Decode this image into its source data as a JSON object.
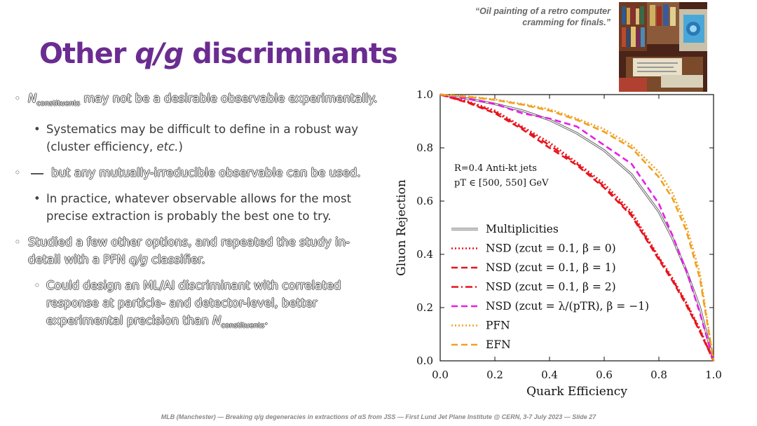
{
  "quote": {
    "line1": "“Oil painting of a retro computer",
    "line2": "cramming for finals.”"
  },
  "title": {
    "part1": "Other ",
    "italic": "q/g",
    "part2": " discriminants"
  },
  "bullets": {
    "b1_sym": "N",
    "b1_sub": "constituents",
    "b1_rest": " may not be a desirable observable experimentally.",
    "b1a": "Systematics may be difficult to define in a robust way (cluster efficiency, ",
    "b1a_it": "etc.",
    "b1a_end": ")",
    "b2": " but any mutually-irreducible observable can be used.",
    "b2a": "In practice, whatever observable allows for the most precise extraction is probably the best one to try.",
    "b3_pre": "Studied a few other options, and repeated the study in-detail with a PFN ",
    "b3_it": "q/g",
    "b3_post": " classifier.",
    "b3a_pre": "Could design an ML/AI discriminant with correlated response at particle- and detector-level, better experimental precision than ",
    "b3a_sym": "N",
    "b3a_sub": "constituents",
    "b3a_end": "."
  },
  "footer": "MLB (Manchester) — Breaking q/g degeneracies in extractions of αS from JSS — First Lund Jet Plane Institute @ CERN, 3-7 July 2023 — Slide 27",
  "chart_data": {
    "type": "line",
    "xlabel": "Quark Efficiency",
    "ylabel": "Gluon Rejection",
    "xlim": [
      0,
      1
    ],
    "ylim": [
      0,
      1
    ],
    "xticks": [
      "0.0",
      "0.2",
      "0.4",
      "0.6",
      "0.8",
      "1.0"
    ],
    "yticks": [
      "0.0",
      "0.2",
      "0.4",
      "0.6",
      "0.8",
      "1.0"
    ],
    "annotation_line1": "R=0.4 Anti-kt jets",
    "annotation_line2": "pT ∈ [500, 550] GeV",
    "legend_position": "lower-left",
    "series": [
      {
        "name": "Multiplicities",
        "color": "#555555",
        "style": "double",
        "x": [
          0,
          0.1,
          0.2,
          0.3,
          0.4,
          0.5,
          0.6,
          0.7,
          0.8,
          0.85,
          0.9,
          0.95,
          1.0
        ],
        "y": [
          1.0,
          0.985,
          0.965,
          0.94,
          0.905,
          0.855,
          0.79,
          0.7,
          0.56,
          0.46,
          0.34,
          0.2,
          0.0
        ]
      },
      {
        "name": "NSD (zcut = 0.1, β = 0)",
        "color": "#e8141c",
        "style": "dotted",
        "x": [
          0,
          0.1,
          0.2,
          0.3,
          0.4,
          0.5,
          0.6,
          0.7,
          0.8,
          0.85,
          0.9,
          0.95,
          1.0
        ],
        "y": [
          1.0,
          0.975,
          0.94,
          0.88,
          0.82,
          0.745,
          0.665,
          0.56,
          0.39,
          0.31,
          0.22,
          0.12,
          0.0
        ]
      },
      {
        "name": "NSD (zcut = 0.1, β = 1)",
        "color": "#e8141c",
        "style": "dashed",
        "x": [
          0,
          0.1,
          0.2,
          0.3,
          0.4,
          0.5,
          0.6,
          0.7,
          0.8,
          0.85,
          0.9,
          0.95,
          1.0
        ],
        "y": [
          1.0,
          0.97,
          0.93,
          0.87,
          0.8,
          0.735,
          0.65,
          0.545,
          0.38,
          0.3,
          0.21,
          0.11,
          0.0
        ]
      },
      {
        "name": "NSD (zcut = 0.1, β = 2)",
        "color": "#e8141c",
        "style": "dashdot",
        "x": [
          0,
          0.1,
          0.2,
          0.3,
          0.4,
          0.5,
          0.6,
          0.7,
          0.8,
          0.85,
          0.9,
          0.95,
          1.0
        ],
        "y": [
          1.0,
          0.972,
          0.935,
          0.875,
          0.81,
          0.74,
          0.655,
          0.55,
          0.385,
          0.305,
          0.215,
          0.115,
          0.0
        ]
      },
      {
        "name": "NSD (zcut = λ/(pTR), β = −1)",
        "color": "#e81ee8",
        "style": "dashed",
        "x": [
          0,
          0.1,
          0.2,
          0.3,
          0.4,
          0.5,
          0.6,
          0.7,
          0.8,
          0.85,
          0.9,
          0.95,
          1.0
        ],
        "y": [
          1.0,
          0.985,
          0.965,
          0.93,
          0.91,
          0.88,
          0.81,
          0.74,
          0.59,
          0.47,
          0.34,
          0.18,
          0.0
        ]
      },
      {
        "name": "PFN",
        "color": "#f0a020",
        "style": "dotted",
        "x": [
          0,
          0.1,
          0.2,
          0.3,
          0.4,
          0.5,
          0.6,
          0.7,
          0.8,
          0.85,
          0.9,
          0.95,
          1.0
        ],
        "y": [
          1.0,
          0.993,
          0.982,
          0.965,
          0.945,
          0.91,
          0.87,
          0.81,
          0.71,
          0.63,
          0.51,
          0.33,
          0.0
        ]
      },
      {
        "name": "EFN",
        "color": "#f0a020",
        "style": "dashed",
        "x": [
          0,
          0.1,
          0.2,
          0.3,
          0.4,
          0.5,
          0.6,
          0.7,
          0.8,
          0.85,
          0.9,
          0.95,
          1.0
        ],
        "y": [
          1.0,
          0.992,
          0.98,
          0.962,
          0.94,
          0.905,
          0.86,
          0.8,
          0.69,
          0.61,
          0.49,
          0.31,
          0.0
        ]
      }
    ]
  }
}
